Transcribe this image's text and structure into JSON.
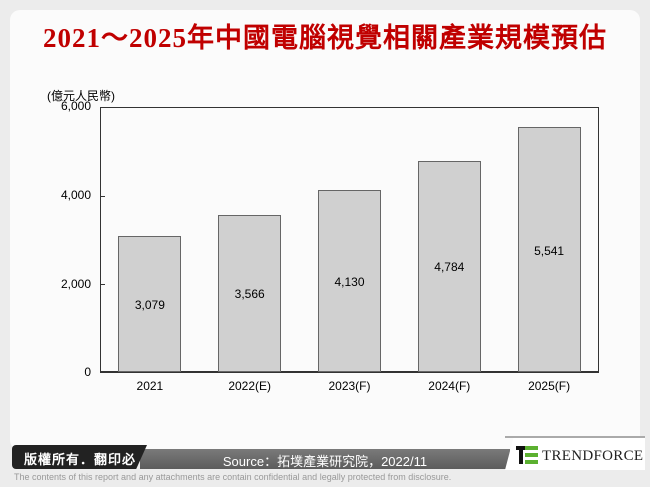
{
  "title": "2021～2025年中國電腦視覺相關產業規模預估",
  "unit_label": "(億元人民幣)",
  "chart_data": {
    "type": "bar",
    "title": "2021～2025年中國電腦視覺相關產業規模預估",
    "xlabel": "",
    "ylabel": "(億元人民幣)",
    "ylim": [
      0,
      6000
    ],
    "yticks": [
      "0",
      "2,000",
      "4,000",
      "6,000"
    ],
    "categories": [
      "2021",
      "2022(E)",
      "2023(F)",
      "2024(F)",
      "2025(F)"
    ],
    "values": [
      3079,
      3566,
      4130,
      4784,
      5541
    ],
    "value_labels": [
      "3,079",
      "3,566",
      "4,130",
      "4,784",
      "5,541"
    ],
    "bar_color": "#d0d0d0",
    "grid": false,
    "legend": "none"
  },
  "footer": {
    "copyright": "版權所有．翻印必究",
    "source": "Source：拓墣產業研究院，2022/11",
    "brand": "TRENDFORCE",
    "disclaimer": "The contents of this report and any attachments are contain confidential and legally protected from disclosure."
  },
  "colors": {
    "title": "#c00000",
    "logo_green": "#5bb030"
  }
}
